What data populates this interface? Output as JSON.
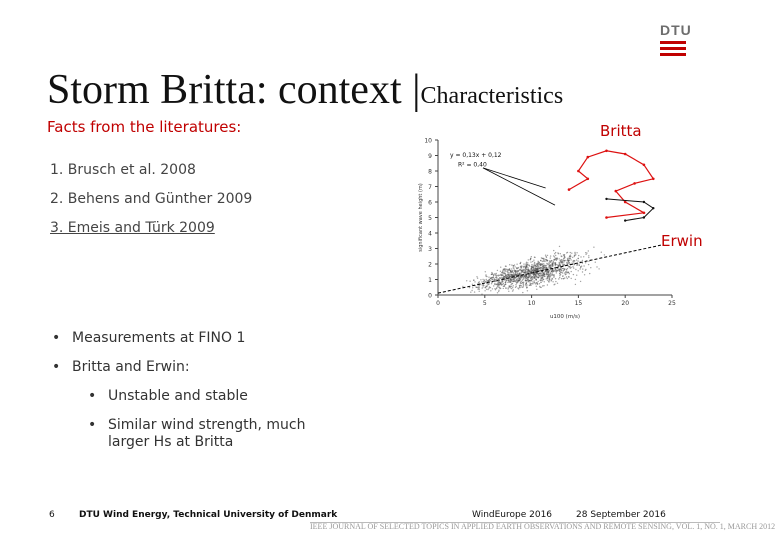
{
  "slide": {
    "title_main": "Storm Britta: context",
    "title_bar": "|",
    "title_sub": "Characteristics",
    "subtitle": "Facts from the literatures:"
  },
  "logo": {
    "text": "DTU"
  },
  "references": [
    "1. Brusch et al. 2008",
    "2. Behens and Günther 2009",
    "3. Emeis and Türk 2009"
  ],
  "bullets": [
    {
      "text": "Measurements at FINO 1"
    },
    {
      "text": "Britta and Erwin:"
    }
  ],
  "subbullets": [
    "Unstable and stable",
    "Similar wind strength, much larger Hs at Britta"
  ],
  "chart_labels": {
    "britta": "Britta",
    "erwin": "Erwin"
  },
  "chart_data": {
    "type": "scatter",
    "xlabel": "u100 (m/s)",
    "ylabel": "significant wave height (m)",
    "xlim": [
      0,
      25
    ],
    "ylim": [
      0,
      10
    ],
    "xticks": [
      "0",
      "5",
      "10",
      "15",
      "20",
      "25"
    ],
    "yticks": [
      "0",
      "1",
      "2",
      "3",
      "4",
      "5",
      "6",
      "7",
      "8",
      "9",
      "10"
    ],
    "equation": "y = 0,13x + 0,12",
    "r_squared": "R² = 0,40",
    "fit": {
      "slope": 0.13,
      "intercept": 0.12
    },
    "britta_track": [
      [
        14,
        6.8
      ],
      [
        16,
        7.5
      ],
      [
        15,
        8
      ],
      [
        16,
        8.9
      ],
      [
        18,
        9.3
      ],
      [
        20,
        9.1
      ],
      [
        22,
        8.4
      ],
      [
        23,
        7.5
      ],
      [
        21,
        7.2
      ],
      [
        19,
        6.7
      ],
      [
        20,
        6
      ],
      [
        22,
        5.3
      ],
      [
        18,
        5
      ]
    ],
    "erwin_track": [
      [
        18,
        6.2
      ],
      [
        22,
        6
      ],
      [
        23,
        5.6
      ],
      [
        22,
        5
      ],
      [
        20,
        4.8
      ]
    ]
  },
  "footer": {
    "page": "6",
    "institution": "DTU Wind Energy, Technical University of Denmark",
    "event": "WindEurope 2016",
    "date": "28 September 2016",
    "journal_strip": "IEEE JOURNAL OF SELECTED TOPICS IN APPLIED EARTH OBSERVATIONS AND REMOTE SENSING, VOL. 1, NO. 1, MARCH 2012"
  }
}
